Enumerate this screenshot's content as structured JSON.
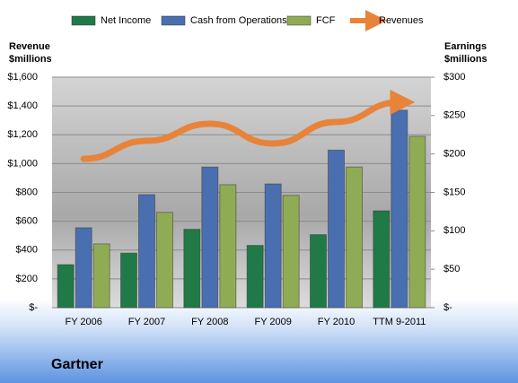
{
  "chart_data": {
    "type": "bar",
    "title": "Gartner",
    "y_label": "Revenue $millions",
    "y2_label": "Earnings $millions",
    "categories": [
      "FY 2006",
      "FY 2007",
      "FY 2008",
      "FY 2009",
      "FY 2010",
      "TTM 9-2011"
    ],
    "series": [
      {
        "name": "Net Income",
        "color": "#1f7a47",
        "type": "bar",
        "axis": "y2",
        "values": [
          56,
          71,
          102,
          81,
          95,
          126
        ]
      },
      {
        "name": "Cash from Operations",
        "color": "#4a6fb0",
        "type": "bar",
        "axis": "y2",
        "values": [
          104,
          147,
          183,
          161,
          205,
          257
        ]
      },
      {
        "name": "FCF",
        "color": "#8fac55",
        "type": "bar",
        "axis": "y2",
        "values": [
          83,
          124,
          160,
          146,
          183,
          223
        ]
      },
      {
        "name": "Revenues",
        "color": "#e8833a",
        "type": "line",
        "axis": "y",
        "values": [
          1033,
          1158,
          1276,
          1139,
          1289,
          1426
        ]
      }
    ],
    "ylim": [
      0,
      1600
    ],
    "yticks": [
      {
        "value": 0,
        "label": "$-"
      },
      {
        "value": 200,
        "label": "$200"
      },
      {
        "value": 400,
        "label": "$400"
      },
      {
        "value": 600,
        "label": "$600"
      },
      {
        "value": 800,
        "label": "$800"
      },
      {
        "value": 1000,
        "label": "$1,000"
      },
      {
        "value": 1200,
        "label": "$1,200"
      },
      {
        "value": 1400,
        "label": "$1,400"
      },
      {
        "value": 1600,
        "label": "$1,600"
      }
    ],
    "y2lim": [
      0,
      300
    ],
    "y2ticks": [
      {
        "value": 0,
        "label": "$-"
      },
      {
        "value": 50,
        "label": "$50"
      },
      {
        "value": 100,
        "label": "$100"
      },
      {
        "value": 150,
        "label": "$150"
      },
      {
        "value": 200,
        "label": "$200"
      },
      {
        "value": 250,
        "label": "$250"
      },
      {
        "value": 300,
        "label": "$300"
      }
    ],
    "grid": true
  }
}
